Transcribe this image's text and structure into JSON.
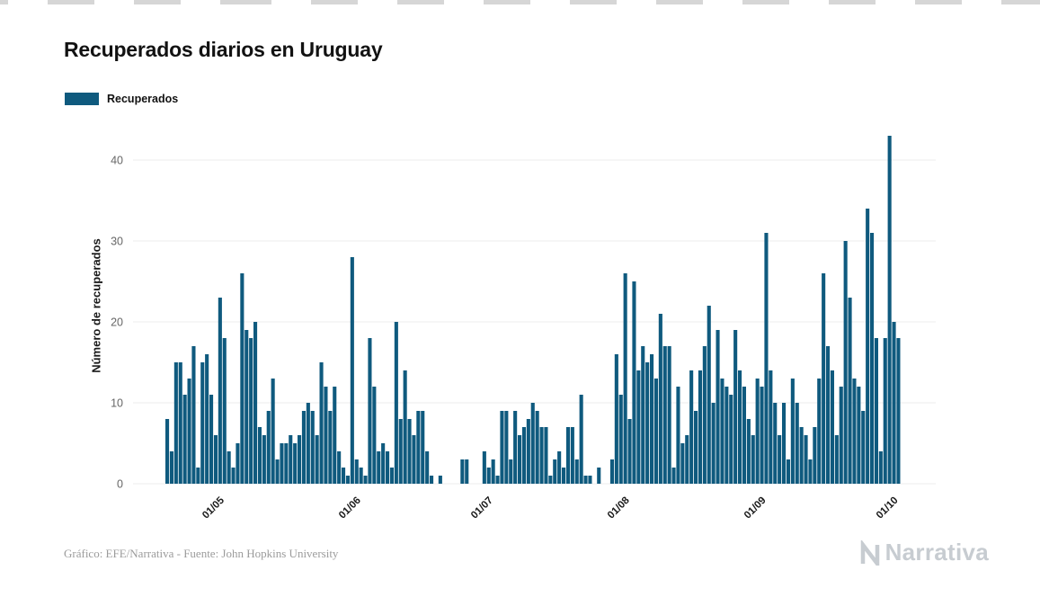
{
  "page": {
    "title": "Recuperados diarios en Uruguay",
    "legend": {
      "label": "Recuperados",
      "color": "#0f5a7e"
    },
    "footer": {
      "credit": "Gráfico: EFE/Narrativa - Fuente: John Hopkins University",
      "brand": "Narrativa"
    }
  },
  "chart_data": {
    "type": "bar",
    "title": "Recuperados diarios en Uruguay",
    "xlabel": "",
    "ylabel": "Número de recuperados",
    "legend": [
      "Recuperados"
    ],
    "legend_position": "top-left",
    "bar_color": "#0f5a7e",
    "grid": "horizontal",
    "gridline_color": "#ececec",
    "ylim": [
      0,
      45
    ],
    "yticks": [
      0,
      10,
      20,
      30,
      40
    ],
    "x_unit": "day",
    "xticks": [
      {
        "label": "01/05",
        "index": 12
      },
      {
        "label": "01/06",
        "index": 43
      },
      {
        "label": "01/07",
        "index": 73
      },
      {
        "label": "01/08",
        "index": 104
      },
      {
        "label": "01/09",
        "index": 135
      },
      {
        "label": "01/10",
        "index": 165
      }
    ],
    "values": [
      8,
      4,
      15,
      15,
      11,
      13,
      17,
      2,
      15,
      16,
      11,
      6,
      23,
      18,
      4,
      2,
      5,
      26,
      19,
      18,
      20,
      7,
      6,
      9,
      13,
      3,
      5,
      5,
      6,
      5,
      6,
      9,
      10,
      9,
      6,
      15,
      12,
      9,
      12,
      4,
      2,
      1,
      28,
      3,
      2,
      1,
      18,
      12,
      4,
      5,
      4,
      2,
      20,
      8,
      14,
      8,
      6,
      9,
      9,
      4,
      1,
      0,
      1,
      0,
      0,
      0,
      0,
      3,
      3,
      0,
      0,
      0,
      4,
      2,
      3,
      1,
      9,
      9,
      3,
      9,
      6,
      7,
      8,
      10,
      9,
      7,
      7,
      1,
      3,
      4,
      2,
      7,
      7,
      3,
      11,
      1,
      1,
      0,
      2,
      0,
      0,
      3,
      16,
      11,
      26,
      8,
      25,
      14,
      17,
      15,
      16,
      13,
      21,
      17,
      17,
      2,
      12,
      5,
      6,
      14,
      9,
      14,
      17,
      22,
      10,
      19,
      13,
      12,
      11,
      19,
      14,
      12,
      8,
      6,
      13,
      12,
      31,
      14,
      10,
      6,
      10,
      3,
      13,
      10,
      7,
      6,
      3,
      7,
      13,
      26,
      17,
      14,
      6,
      12,
      30,
      23,
      13,
      12,
      9,
      34,
      31,
      18,
      4,
      18,
      43,
      20,
      18
    ]
  }
}
